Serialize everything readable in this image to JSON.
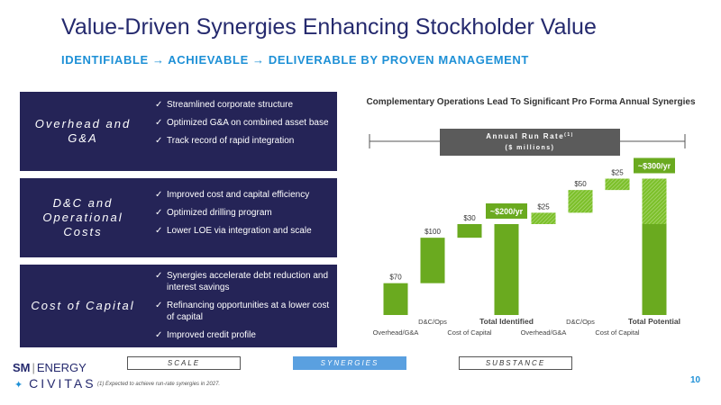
{
  "title": "Value-Driven Synergies Enhancing Stockholder Value",
  "subtitle": "IDENTIFIABLE → ACHIEVABLE → DELIVERABLE BY PROVEN MANAGEMENT",
  "boxes": [
    {
      "label": "Overhead and G&A",
      "items": [
        "Streamlined corporate structure",
        "Optimized G&A on combined asset base",
        "Track record of rapid integration"
      ]
    },
    {
      "label": "D&C and Operational Costs",
      "items": [
        "Improved cost and capital efficiency",
        "Optimized drilling program",
        "Lower LOE via integration and scale"
      ]
    },
    {
      "label": "Cost of Capital",
      "items": [
        "Synergies accelerate debt reduction and interest savings",
        "Refinancing opportunities at a lower cost of capital",
        "Improved credit profile"
      ]
    }
  ],
  "chart_data": {
    "type": "bar",
    "title": "Complementary Operations Lead To Significant Pro Forma Annual Synergies",
    "banner": {
      "line1": "Annual Run Rate",
      "superscript": "(1)",
      "line2": "($ millions)"
    },
    "categories": [
      "Overhead/G&A",
      "D&C/Ops",
      "Cost of Capital",
      "Total Identified",
      "Overhead/G&A",
      "D&C/Ops",
      "Cost of Capital",
      "Total Potential"
    ],
    "values": [
      70,
      100,
      30,
      200,
      25,
      50,
      25,
      300
    ],
    "data_labels": [
      "$70",
      "$100",
      "$30",
      "",
      "$25",
      "$50",
      "$25",
      ""
    ],
    "callouts": [
      "~$200/yr",
      "~$300/yr"
    ],
    "bold_categories": [
      "Total Identified",
      "Total Potential"
    ],
    "colors": {
      "bar": "#6aaa1f",
      "callout": "#6aaa1f",
      "banner": "#5b5b5b"
    }
  },
  "footer": {
    "tags": [
      "SCALE",
      "SYNERGIES",
      "SUBSTANCE"
    ],
    "logo_sm": "SM",
    "logo_energy": "ENERGY",
    "logo_civitas": "CIVITAS",
    "footnote": "(1)    Expected to achieve run-rate synergies in 2027.",
    "page_number": "10"
  }
}
